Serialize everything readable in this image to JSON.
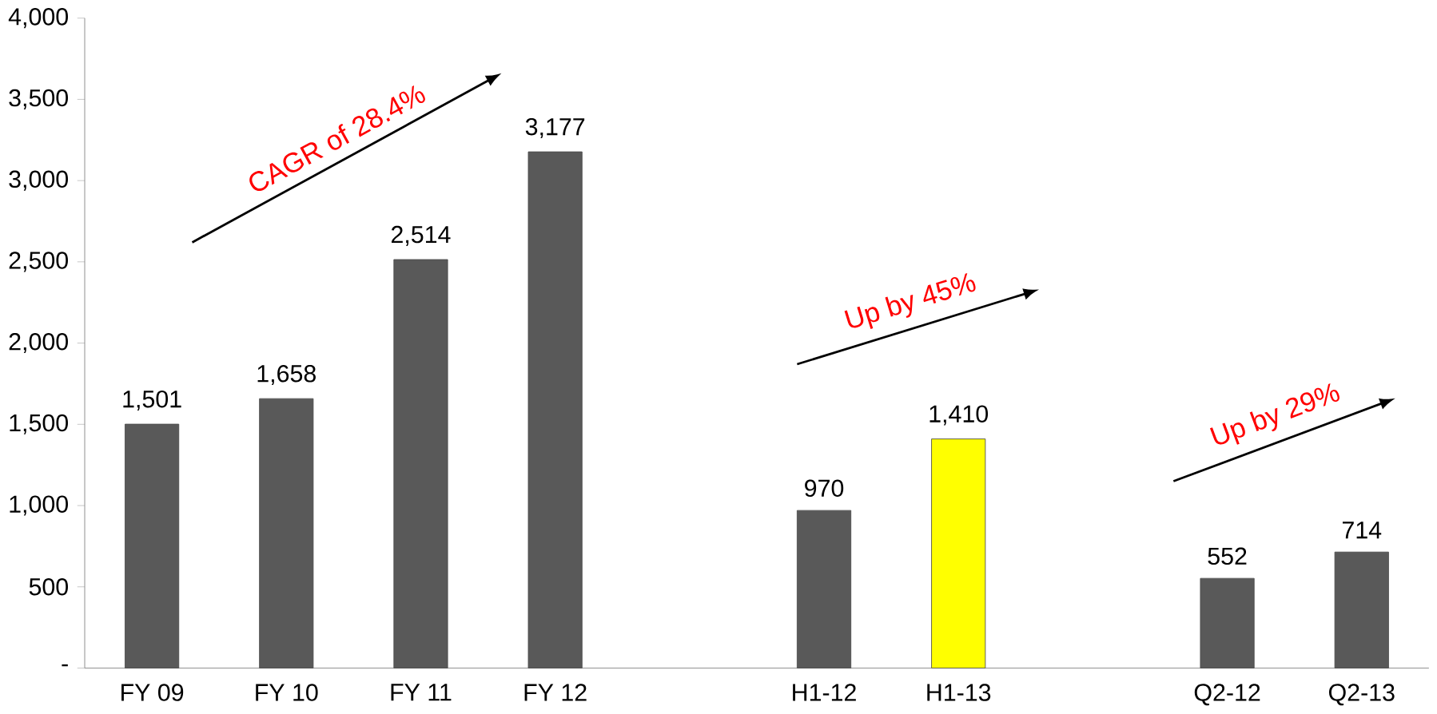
{
  "chart_data": {
    "type": "bar",
    "categories": [
      "FY 09",
      "FY 10",
      "FY 11",
      "FY 12",
      null,
      "H1-12",
      "H1-13",
      null,
      "Q2-12",
      "Q2-13"
    ],
    "values": [
      1501,
      1658,
      2514,
      3177,
      null,
      970,
      1410,
      null,
      552,
      714
    ],
    "colors": [
      "#595959",
      "#595959",
      "#595959",
      "#595959",
      null,
      "#595959",
      "#ffff00",
      null,
      "#595959",
      "#595959"
    ],
    "value_labels": [
      "1,501",
      "1,658",
      "2,514",
      "3,177",
      null,
      "970",
      "1,410",
      null,
      "552",
      "714"
    ],
    "ylim": [
      0,
      4000
    ],
    "yticks": [
      {
        "value": 0,
        "label": "-"
      },
      500,
      {
        "value": 1000,
        "label": "1,000"
      },
      {
        "value": 1500,
        "label": "1,500"
      },
      {
        "value": 2000,
        "label": "2,000"
      },
      {
        "value": 2500,
        "label": "2,500"
      },
      {
        "value": 3000,
        "label": "3,000"
      },
      {
        "value": 3500,
        "label": "3,500"
      },
      {
        "value": 4000,
        "label": "4,000"
      }
    ],
    "annotations": [
      "CAGR of 28.4%",
      "Up by 45%",
      "Up by 29%"
    ],
    "grid": false
  }
}
